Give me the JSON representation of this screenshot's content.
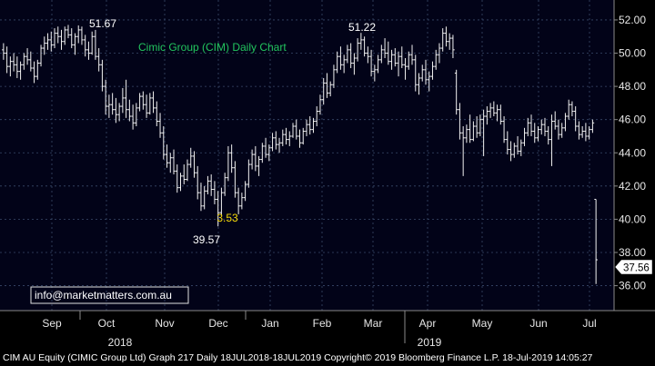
{
  "chart_data": {
    "type": "ohlc",
    "title": "Cimic Group (CIM) Daily Chart",
    "ylim": [
      34.5,
      53.2
    ],
    "yticks": [
      "52.00",
      "50.00",
      "48.00",
      "46.00",
      "44.00",
      "42.00",
      "40.00",
      "38.00",
      "36.00"
    ],
    "ytick_values": [
      52,
      50,
      48,
      46,
      44,
      42,
      40,
      38,
      36
    ],
    "month_labels": [
      "Sep",
      "Oct",
      "Nov",
      "Dec",
      "Jan",
      "Feb",
      "Mar",
      "Apr",
      "May",
      "Jun",
      "Jul"
    ],
    "year_labels": [
      "2018",
      "2019"
    ],
    "last_price": "37.56",
    "annotations": [
      "51.67",
      "51.22",
      "3.53",
      "39.57"
    ],
    "watermark": "info@marketmatters.com.au",
    "footer": "CIM AU Equity (CIMIC Group Ltd) Graph 217  Daily 18JUL2018-18JUL2019  Copyright© 2019 Bloomberg Finance L.P.  18-Jul-2019 14:05:27",
    "series": [
      {
        "values": [
          [
            50.2,
            50.6,
            49.6,
            50.0
          ],
          [
            50.0,
            50.4,
            48.8,
            49.2
          ],
          [
            49.2,
            49.8,
            48.6,
            49.5
          ],
          [
            49.5,
            50.0,
            48.9,
            49.3
          ],
          [
            49.3,
            49.8,
            48.5,
            48.9
          ],
          [
            48.9,
            49.5,
            48.4,
            49.3
          ],
          [
            49.3,
            50.0,
            49.0,
            49.8
          ],
          [
            49.8,
            50.3,
            49.3,
            49.6
          ],
          [
            49.6,
            50.1,
            48.9,
            49.1
          ],
          [
            49.1,
            49.5,
            48.2,
            48.6
          ],
          [
            48.6,
            49.6,
            48.4,
            49.4
          ],
          [
            49.4,
            50.5,
            49.2,
            50.3
          ],
          [
            50.3,
            51.0,
            49.9,
            50.6
          ],
          [
            50.6,
            51.2,
            50.2,
            50.8
          ],
          [
            50.8,
            51.3,
            50.1,
            50.5
          ],
          [
            50.5,
            51.5,
            50.3,
            51.2
          ],
          [
            51.2,
            51.6,
            50.6,
            51.0
          ],
          [
            51.0,
            51.4,
            50.2,
            50.7
          ],
          [
            50.7,
            51.6,
            50.5,
            51.4
          ],
          [
            51.4,
            51.7,
            50.9,
            51.1
          ],
          [
            51.1,
            51.5,
            50.3,
            50.5
          ],
          [
            50.5,
            51.2,
            49.9,
            51.0
          ],
          [
            51.0,
            51.67,
            50.6,
            51.4
          ],
          [
            51.4,
            51.6,
            50.5,
            50.8
          ],
          [
            50.8,
            51.1,
            49.8,
            50.2
          ],
          [
            50.2,
            50.7,
            49.6,
            50.0
          ],
          [
            50.0,
            51.3,
            49.9,
            51.0
          ],
          [
            51.0,
            51.4,
            49.6,
            49.8
          ],
          [
            49.8,
            50.3,
            48.9,
            49.3
          ],
          [
            49.3,
            49.6,
            47.7,
            48.0
          ],
          [
            48.0,
            48.4,
            46.3,
            46.8
          ],
          [
            46.8,
            47.5,
            46.1,
            46.9
          ],
          [
            46.9,
            47.6,
            46.3,
            46.6
          ],
          [
            46.6,
            47.3,
            45.8,
            46.3
          ],
          [
            46.3,
            47.0,
            45.9,
            46.8
          ],
          [
            46.8,
            47.9,
            46.4,
            47.3
          ],
          [
            47.3,
            48.4,
            46.1,
            46.6
          ],
          [
            46.6,
            47.2,
            45.9,
            46.2
          ],
          [
            46.2,
            46.9,
            45.4,
            45.8
          ],
          [
            45.8,
            47.0,
            45.6,
            46.7
          ],
          [
            46.7,
            47.6,
            46.5,
            47.4
          ],
          [
            47.4,
            47.7,
            46.6,
            46.9
          ],
          [
            46.9,
            47.5,
            46.1,
            46.4
          ],
          [
            46.4,
            47.6,
            46.3,
            47.3
          ],
          [
            47.3,
            47.7,
            46.4,
            46.7
          ],
          [
            46.7,
            47.1,
            45.6,
            45.9
          ],
          [
            45.9,
            46.4,
            44.9,
            45.2
          ],
          [
            45.2,
            45.6,
            43.6,
            43.9
          ],
          [
            43.9,
            44.5,
            43.1,
            43.4
          ],
          [
            43.4,
            44.0,
            42.8,
            43.7
          ],
          [
            43.7,
            44.2,
            42.7,
            42.9
          ],
          [
            42.9,
            43.3,
            41.6,
            41.9
          ],
          [
            41.9,
            42.8,
            41.7,
            42.6
          ],
          [
            42.6,
            43.3,
            42.1,
            42.4
          ],
          [
            42.4,
            43.6,
            42.3,
            43.3
          ],
          [
            43.3,
            44.3,
            43.1,
            43.8
          ],
          [
            43.8,
            44.1,
            42.5,
            42.8
          ],
          [
            42.8,
            43.2,
            41.2,
            41.6
          ],
          [
            41.6,
            42.2,
            40.5,
            40.8
          ],
          [
            40.8,
            42.0,
            40.6,
            41.7
          ],
          [
            41.7,
            42.6,
            41.5,
            42.3
          ],
          [
            42.3,
            42.7,
            41.4,
            41.8
          ],
          [
            41.8,
            42.3,
            40.9,
            41.2
          ],
          [
            41.2,
            41.7,
            39.57,
            40.4
          ],
          [
            40.4,
            41.9,
            40.2,
            41.6
          ],
          [
            41.6,
            42.8,
            41.4,
            42.5
          ],
          [
            42.5,
            44.4,
            42.3,
            44.0
          ],
          [
            44.0,
            44.5,
            42.8,
            43.1
          ],
          [
            43.1,
            43.5,
            41.3,
            41.6
          ],
          [
            41.6,
            41.9,
            40.3,
            40.8
          ],
          [
            40.8,
            41.6,
            40.6,
            41.3
          ],
          [
            41.3,
            42.3,
            41.1,
            42.1
          ],
          [
            42.1,
            43.6,
            41.9,
            43.3
          ],
          [
            43.3,
            44.2,
            43.0,
            43.9
          ],
          [
            43.9,
            44.4,
            42.9,
            43.2
          ],
          [
            43.2,
            43.8,
            42.6,
            43.6
          ],
          [
            43.6,
            44.6,
            43.4,
            44.4
          ],
          [
            44.4,
            44.9,
            43.7,
            43.9
          ],
          [
            43.9,
            44.5,
            43.5,
            44.3
          ],
          [
            44.3,
            45.2,
            44.1,
            44.9
          ],
          [
            44.9,
            45.3,
            44.2,
            44.5
          ],
          [
            44.5,
            44.9,
            44.0,
            44.6
          ],
          [
            44.6,
            45.4,
            44.4,
            45.1
          ],
          [
            45.1,
            45.5,
            44.5,
            44.8
          ],
          [
            44.8,
            45.3,
            44.4,
            45.0
          ],
          [
            45.0,
            45.8,
            44.9,
            45.6
          ],
          [
            45.6,
            46.0,
            44.8,
            45.0
          ],
          [
            45.0,
            45.4,
            44.3,
            44.6
          ],
          [
            44.6,
            45.5,
            44.5,
            45.3
          ],
          [
            45.3,
            46.0,
            45.0,
            45.7
          ],
          [
            45.7,
            46.2,
            45.1,
            45.4
          ],
          [
            45.4,
            46.1,
            45.2,
            45.9
          ],
          [
            45.9,
            46.8,
            45.6,
            46.5
          ],
          [
            46.5,
            47.5,
            46.3,
            47.2
          ],
          [
            47.2,
            48.5,
            46.9,
            48.2
          ],
          [
            48.2,
            48.8,
            47.3,
            47.6
          ],
          [
            47.6,
            48.3,
            47.4,
            48.1
          ],
          [
            48.1,
            49.3,
            47.9,
            49.0
          ],
          [
            49.0,
            50.1,
            48.8,
            49.8
          ],
          [
            49.8,
            50.4,
            49.0,
            49.3
          ],
          [
            49.3,
            49.9,
            48.8,
            49.6
          ],
          [
            49.6,
            50.5,
            49.4,
            50.2
          ],
          [
            50.2,
            50.6,
            49.1,
            49.4
          ],
          [
            49.4,
            50.0,
            48.7,
            49.7
          ],
          [
            49.7,
            50.9,
            49.5,
            50.6
          ],
          [
            50.6,
            51.22,
            50.2,
            50.8
          ],
          [
            50.8,
            51.0,
            49.8,
            50.0
          ],
          [
            50.0,
            50.4,
            49.4,
            49.8
          ],
          [
            49.8,
            50.2,
            48.6,
            48.9
          ],
          [
            48.9,
            49.3,
            48.3,
            49.0
          ],
          [
            49.0,
            49.9,
            48.8,
            49.6
          ],
          [
            49.6,
            50.5,
            49.4,
            50.2
          ],
          [
            50.2,
            50.9,
            49.7,
            50.0
          ],
          [
            50.0,
            50.7,
            49.3,
            49.5
          ],
          [
            49.5,
            50.2,
            49.0,
            49.9
          ],
          [
            49.9,
            50.3,
            49.2,
            49.4
          ],
          [
            49.4,
            50.1,
            48.6,
            49.8
          ],
          [
            49.8,
            50.4,
            49.1,
            49.3
          ],
          [
            49.3,
            49.7,
            48.4,
            49.2
          ],
          [
            49.2,
            50.1,
            49.0,
            49.9
          ],
          [
            49.9,
            50.5,
            49.3,
            49.6
          ],
          [
            49.6,
            49.9,
            47.7,
            48.1
          ],
          [
            48.1,
            48.8,
            47.5,
            48.5
          ],
          [
            48.5,
            49.3,
            48.3,
            49.0
          ],
          [
            49.0,
            49.6,
            48.1,
            48.4
          ],
          [
            48.4,
            48.9,
            47.7,
            48.6
          ],
          [
            48.6,
            49.5,
            48.4,
            49.2
          ],
          [
            49.2,
            50.2,
            49.0,
            49.9
          ],
          [
            49.9,
            50.6,
            49.4,
            50.3
          ],
          [
            50.3,
            51.5,
            50.1,
            51.2
          ],
          [
            51.2,
            51.6,
            50.4,
            50.7
          ],
          [
            50.7,
            51.2,
            50.2,
            50.9
          ],
          [
            50.9,
            51.1,
            49.7,
            50.2
          ],
          [
            48.8,
            49.0,
            46.3,
            46.6
          ],
          [
            46.6,
            47.0,
            44.8,
            45.2
          ],
          [
            45.2,
            45.6,
            42.6,
            44.9
          ],
          [
            44.9,
            45.7,
            44.6,
            45.4
          ],
          [
            45.4,
            46.3,
            44.6,
            44.8
          ],
          [
            44.8,
            45.9,
            44.7,
            45.6
          ],
          [
            45.6,
            46.2,
            44.9,
            45.2
          ],
          [
            45.2,
            46.3,
            45.0,
            46.0
          ],
          [
            46.0,
            46.6,
            43.8,
            46.2
          ],
          [
            46.2,
            46.8,
            45.7,
            46.5
          ],
          [
            46.5,
            47.0,
            46.1,
            46.7
          ],
          [
            46.7,
            47.1,
            46.2,
            46.4
          ],
          [
            46.4,
            46.9,
            45.9,
            46.6
          ],
          [
            46.6,
            46.9,
            45.7,
            45.9
          ],
          [
            45.9,
            46.2,
            44.6,
            44.8
          ],
          [
            44.8,
            45.3,
            43.9,
            44.2
          ],
          [
            44.2,
            44.7,
            43.5,
            43.9
          ],
          [
            43.9,
            44.6,
            43.7,
            44.4
          ],
          [
            44.4,
            45.0,
            43.9,
            44.1
          ],
          [
            44.1,
            44.8,
            43.8,
            44.6
          ],
          [
            44.6,
            45.5,
            44.4,
            45.2
          ],
          [
            45.2,
            46.1,
            45.0,
            45.8
          ],
          [
            45.8,
            46.3,
            45.0,
            45.3
          ],
          [
            45.3,
            45.8,
            44.6,
            44.9
          ],
          [
            44.9,
            45.6,
            44.7,
            45.4
          ],
          [
            45.4,
            46.0,
            45.1,
            45.7
          ],
          [
            45.7,
            46.1,
            45.0,
            45.3
          ],
          [
            45.3,
            45.6,
            44.5,
            44.8
          ],
          [
            44.8,
            46.3,
            43.2,
            45.9
          ],
          [
            45.9,
            46.5,
            45.4,
            45.6
          ],
          [
            45.6,
            46.0,
            44.8,
            45.1
          ],
          [
            45.1,
            45.8,
            44.9,
            45.5
          ],
          [
            45.5,
            46.4,
            45.3,
            46.2
          ],
          [
            46.2,
            47.2,
            46.0,
            46.9
          ],
          [
            46.9,
            47.1,
            46.2,
            46.5
          ],
          [
            46.5,
            46.8,
            45.3,
            45.6
          ],
          [
            45.6,
            45.9,
            44.8,
            45.1
          ],
          [
            45.1,
            45.6,
            44.9,
            45.3
          ],
          [
            45.3,
            45.8,
            44.7,
            45.0
          ],
          [
            45.0,
            45.6,
            44.8,
            45.4
          ],
          [
            45.4,
            46.0,
            45.2,
            45.8
          ],
          [
            41.2,
            41.2,
            36.1,
            37.56
          ]
        ]
      }
    ]
  }
}
